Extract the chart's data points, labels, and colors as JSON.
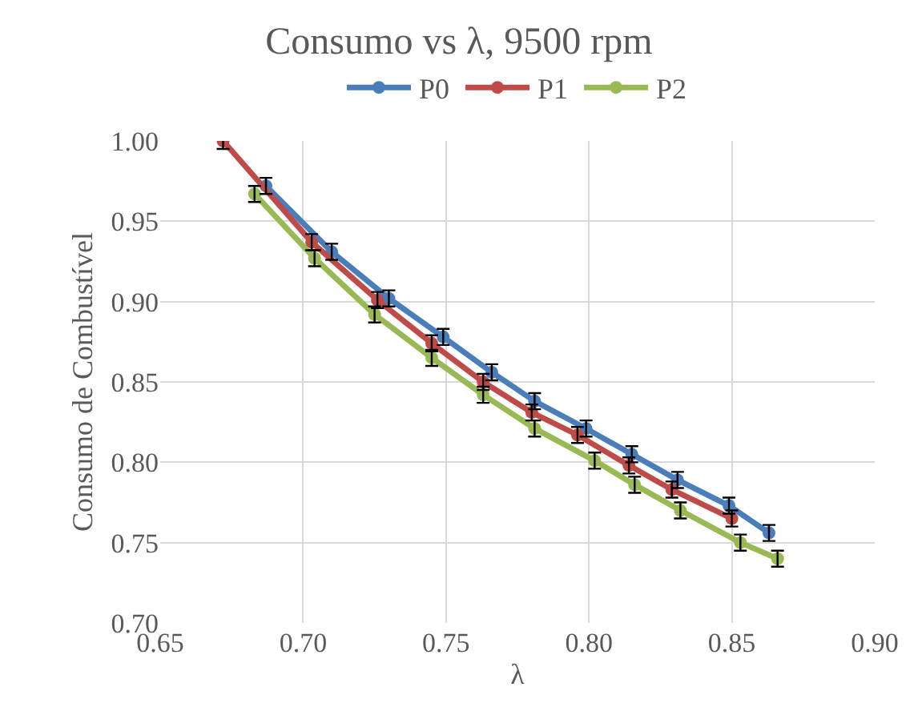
{
  "chart_data": {
    "type": "line",
    "title": "Consumo vs λ, 9500 rpm",
    "xlabel": "λ",
    "ylabel": "Consumo de Combustível",
    "xlim": [
      0.65,
      0.9
    ],
    "xticks": [
      {
        "value": 0.65,
        "label": "0.65"
      },
      {
        "value": 0.7,
        "label": "0.70"
      },
      {
        "value": 0.75,
        "label": "0.75"
      },
      {
        "value": 0.8,
        "label": "0.80"
      },
      {
        "value": 0.85,
        "label": "0.85"
      },
      {
        "value": 0.9,
        "label": "0.90"
      }
    ],
    "ylim": [
      0.7,
      1.0
    ],
    "yticks": [
      {
        "value": 0.7,
        "label": "0.70"
      },
      {
        "value": 0.75,
        "label": "0.75"
      },
      {
        "value": 0.8,
        "label": "0.80"
      },
      {
        "value": 0.85,
        "label": "0.85"
      },
      {
        "value": 0.9,
        "label": "0.90"
      },
      {
        "value": 0.95,
        "label": "0.95"
      },
      {
        "value": 1.0,
        "label": "1.00"
      }
    ],
    "grid": true,
    "legend": "top",
    "marker": "circle",
    "line_style": "solid",
    "series": [
      {
        "name": "P0",
        "color": "#4a7ebb",
        "x": [
          0.687,
          0.71,
          0.73,
          0.749,
          0.766,
          0.781,
          0.799,
          0.815,
          0.831,
          0.849,
          0.863
        ],
        "values": [
          0.972,
          0.931,
          0.902,
          0.878,
          0.856,
          0.838,
          0.821,
          0.805,
          0.789,
          0.773,
          0.756
        ],
        "errors": [
          0.005,
          0.005,
          0.005,
          0.005,
          0.005,
          0.005,
          0.005,
          0.005,
          0.005,
          0.005,
          0.005
        ]
      },
      {
        "name": "P1",
        "color": "#be4b48",
        "x": [
          0.672,
          0.703,
          0.726,
          0.745,
          0.763,
          0.78,
          0.796,
          0.814,
          0.829,
          0.85
        ],
        "values": [
          1.0,
          0.937,
          0.901,
          0.874,
          0.85,
          0.831,
          0.817,
          0.798,
          0.783,
          0.765
        ],
        "errors": [
          0.005,
          0.005,
          0.005,
          0.005,
          0.005,
          0.005,
          0.005,
          0.005,
          0.005,
          0.005
        ]
      },
      {
        "name": "P2",
        "color": "#98b954",
        "x": [
          0.683,
          0.704,
          0.725,
          0.745,
          0.763,
          0.781,
          0.802,
          0.816,
          0.832,
          0.853,
          0.866
        ],
        "values": [
          0.967,
          0.927,
          0.892,
          0.865,
          0.842,
          0.821,
          0.801,
          0.786,
          0.77,
          0.75,
          0.74
        ],
        "errors": [
          0.005,
          0.005,
          0.005,
          0.005,
          0.005,
          0.005,
          0.005,
          0.005,
          0.005,
          0.005,
          0.005
        ]
      }
    ]
  }
}
